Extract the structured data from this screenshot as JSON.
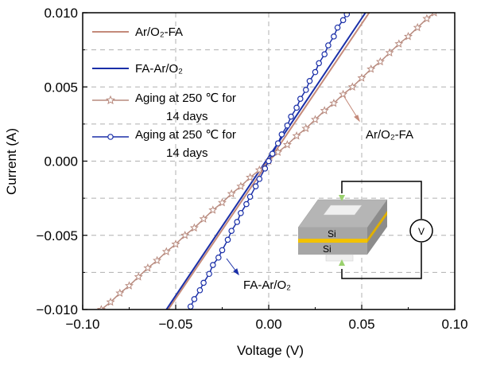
{
  "chart_data": {
    "type": "line",
    "xlabel": "Voltage (V)",
    "ylabel": "Current (A)",
    "xlim": [
      -0.1,
      0.1
    ],
    "ylim": [
      -0.01,
      0.01
    ],
    "xticks": [
      -0.1,
      -0.05,
      0.0,
      0.05,
      0.1
    ],
    "xtick_labels": [
      "−0.10",
      "−0.05",
      "0.00",
      "0.05",
      "0.10"
    ],
    "yticks": [
      -0.01,
      -0.005,
      0.0,
      0.005,
      0.01
    ],
    "ytick_labels": [
      "−0.010",
      "−0.005",
      "0.000",
      "0.005",
      "0.010"
    ],
    "grid": "dashed at ticks",
    "legend_position": "top-left",
    "series": [
      {
        "name": "Ar/O₂-FA",
        "color": "#c48a7a",
        "marker": "none",
        "x": [
          -0.054,
          0.054
        ],
        "y": [
          -0.01,
          0.01
        ]
      },
      {
        "name": "FA-Ar/O₂",
        "color": "#1a2fa8",
        "marker": "none",
        "x": [
          -0.055,
          0.052
        ],
        "y": [
          -0.01,
          0.01
        ]
      },
      {
        "name": "Aging at 250 ℃ for 14 days",
        "color": "#b88a7e",
        "marker": "star",
        "x": [
          -0.09,
          -0.085,
          -0.08,
          -0.075,
          -0.07,
          -0.065,
          -0.06,
          -0.055,
          -0.05,
          -0.045,
          -0.04,
          -0.035,
          -0.03,
          -0.025,
          -0.02,
          -0.015,
          -0.01,
          -0.005,
          0.0,
          0.005,
          0.01,
          0.015,
          0.02,
          0.025,
          0.03,
          0.035,
          0.04,
          0.045,
          0.05,
          0.055,
          0.06,
          0.065,
          0.07,
          0.075,
          0.08,
          0.085,
          0.089
        ],
        "y": [
          -0.01,
          -0.0095,
          -0.0089,
          -0.0084,
          -0.0078,
          -0.0072,
          -0.0067,
          -0.0061,
          -0.0056,
          -0.005,
          -0.0045,
          -0.0039,
          -0.0033,
          -0.0028,
          -0.0022,
          -0.0017,
          -0.0011,
          -0.0006,
          0.0,
          0.0006,
          0.0011,
          0.0017,
          0.0022,
          0.0028,
          0.0034,
          0.0039,
          0.0045,
          0.005,
          0.0056,
          0.0062,
          0.0067,
          0.0073,
          0.0079,
          0.0084,
          0.009,
          0.0096,
          0.01
        ]
      },
      {
        "name": "Aging at 250 ℃ for 14 days",
        "color": "#1a2fa8",
        "marker": "circle",
        "x": [
          -0.042,
          -0.04,
          -0.037,
          -0.035,
          -0.032,
          -0.03,
          -0.027,
          -0.025,
          -0.022,
          -0.02,
          -0.017,
          -0.015,
          -0.012,
          -0.01,
          -0.007,
          -0.005,
          -0.002,
          0.0,
          0.002,
          0.005,
          0.007,
          0.01,
          0.012,
          0.015,
          0.017,
          0.02,
          0.022,
          0.025,
          0.027,
          0.03,
          0.032,
          0.035,
          0.037,
          0.04,
          0.042
        ],
        "y": [
          -0.0098,
          -0.0093,
          -0.0087,
          -0.0082,
          -0.0076,
          -0.007,
          -0.0065,
          -0.006,
          -0.0053,
          -0.0047,
          -0.0041,
          -0.0035,
          -0.0029,
          -0.0024,
          -0.0017,
          -0.0012,
          -0.0005,
          0.0,
          0.0005,
          0.0012,
          0.0018,
          0.0024,
          0.003,
          0.0036,
          0.0042,
          0.0048,
          0.0054,
          0.006,
          0.0066,
          0.0072,
          0.0078,
          0.0084,
          0.009,
          0.0095,
          0.0099
        ]
      }
    ],
    "annotations": [
      {
        "text": "Ar/O₂-FA",
        "arrow_from": [
          0.04,
          0.0044
        ]
      },
      {
        "text": "FA-Ar/O₂",
        "arrow_from": [
          -0.024,
          -0.0066
        ]
      }
    ]
  },
  "legend": {
    "items": [
      {
        "label": "Ar/O₂-FA"
      },
      {
        "label": "FA-Ar/O₂"
      },
      {
        "label_line1": "Aging at 250 ℃ for",
        "label_line2": "14 days"
      },
      {
        "label_line1": "Aging at 250 ℃ for",
        "label_line2": "14 days"
      }
    ]
  },
  "annotation_text": {
    "upper": "Ar/O₂-FA",
    "lower": "FA-Ar/O₂"
  },
  "inset": {
    "top_label": "Si",
    "bottom_label": "Si",
    "meter_label": "V"
  },
  "colors": {
    "ar_o2_fa": "#c48a7a",
    "fa_ar_o2": "#1a2fa8",
    "aging_star": "#b88a7e",
    "aging_circle": "#1a2fa8",
    "grid": "#b0b0b0",
    "bond_layer": "#f2c200",
    "electrode": "#9ad16e"
  }
}
